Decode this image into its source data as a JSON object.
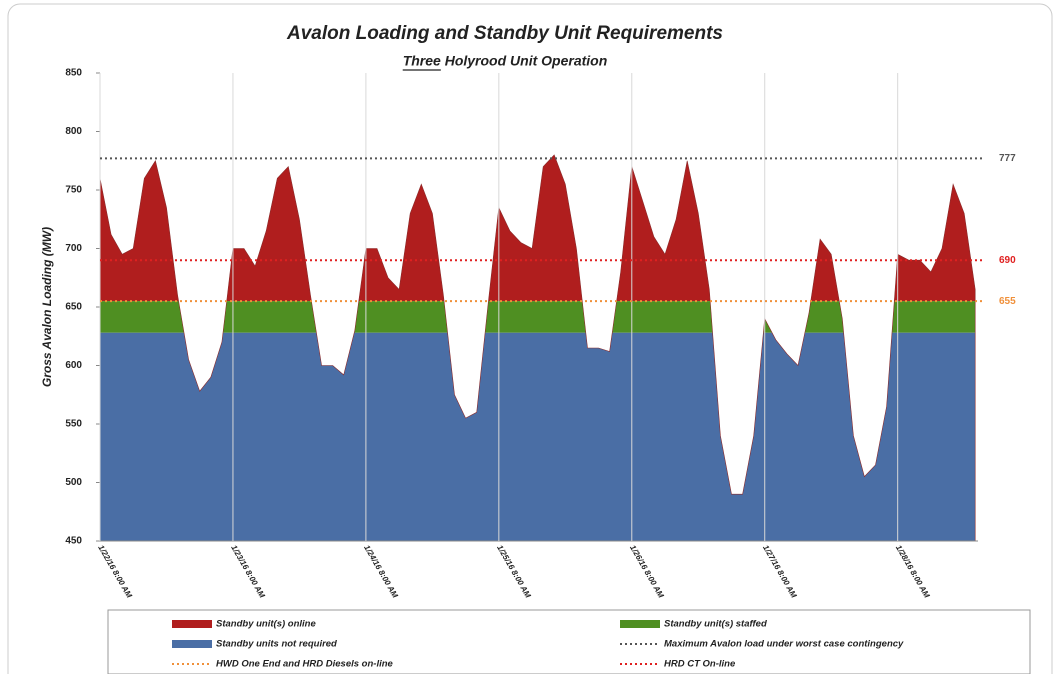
{
  "chart_data": {
    "type": "area",
    "title": "Avalon Loading and Standby Unit Requirements",
    "subtitle": "Three Holyrood Unit  Operation",
    "y_label": "Gross Avalon Loading (MW)",
    "categories": [
      "1/22/16 8:00 AM",
      null,
      null,
      null,
      null,
      null,
      null,
      null,
      null,
      null,
      null,
      null,
      "1/23/16 8:00 AM",
      null,
      null,
      null,
      null,
      null,
      null,
      null,
      null,
      null,
      null,
      null,
      "1/24/16 8:00 AM",
      null,
      null,
      null,
      null,
      null,
      null,
      null,
      null,
      null,
      null,
      null,
      "1/25/16 8:00 AM",
      null,
      null,
      null,
      null,
      null,
      null,
      null,
      null,
      null,
      null,
      null,
      "1/26/16 8:00 AM",
      null,
      null,
      null,
      null,
      null,
      null,
      null,
      null,
      null,
      null,
      null,
      "1/27/16 8:00 AM",
      null,
      null,
      null,
      null,
      null,
      null,
      null,
      null,
      null,
      null,
      null,
      "1/28/16 8:00 AM",
      null,
      null,
      null,
      null,
      null,
      null,
      null
    ],
    "values": [
      760,
      712,
      695,
      700,
      760,
      775,
      735,
      660,
      605,
      578,
      590,
      620,
      700,
      700,
      685,
      715,
      760,
      770,
      725,
      660,
      600,
      600,
      592,
      630,
      700,
      700,
      675,
      665,
      730,
      755,
      730,
      660,
      575,
      555,
      560,
      650,
      735,
      715,
      705,
      700,
      770,
      780,
      755,
      700,
      615,
      615,
      612,
      680,
      770,
      740,
      710,
      695,
      725,
      775,
      730,
      665,
      540,
      490,
      490,
      540,
      640,
      622,
      610,
      600,
      645,
      708,
      695,
      640,
      540,
      505,
      515,
      565,
      695,
      690,
      690,
      680,
      700,
      755,
      730,
      665
    ],
    "bands": [
      {
        "name": "Standby unit(s) online",
        "color": "#b01e1e",
        "min": 655
      },
      {
        "name": "Standby unit(s) staffed",
        "color": "#4f8f22",
        "min": 628
      },
      {
        "name": "Standby units not required",
        "color": "#4a6ea5"
      }
    ],
    "reference_lines": [
      {
        "name": "Maximum Avalon load under worst case contingency",
        "value": 777,
        "color": "#555555"
      },
      {
        "name": "HWD One End and HRD Diesels on-line",
        "value": 655,
        "color": "#f0903a"
      },
      {
        "name": "HRD CT On-line",
        "value": 690,
        "color": "#e02020"
      }
    ],
    "ylim": [
      450,
      850
    ],
    "yticks": [
      450,
      500,
      550,
      600,
      650,
      700,
      750,
      800,
      850
    ],
    "grid": "x"
  }
}
